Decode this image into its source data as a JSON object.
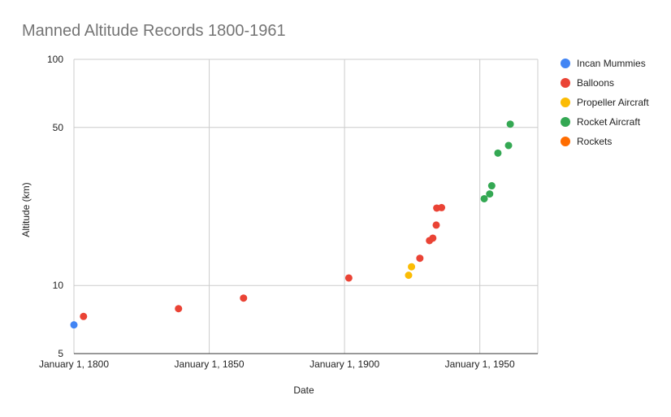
{
  "chart_data": {
    "type": "scatter",
    "title": "Manned Altitude Records 1800-1961",
    "xlabel": "Date",
    "ylabel": "Altitude (km)",
    "x_axis": {
      "type": "date",
      "range": [
        "1799-12-31",
        "1971-06-01"
      ],
      "tick_labels": [
        "January 1, 1800",
        "January 1, 1850",
        "January 1, 1900",
        "January 1, 1950"
      ],
      "tick_values": [
        "1800-01-01",
        "1850-01-01",
        "1900-01-01",
        "1950-01-01"
      ]
    },
    "y_axis": {
      "scale": "log",
      "range": [
        5,
        100
      ],
      "tick_labels": [
        "5",
        "10",
        "50",
        "100"
      ],
      "tick_values": [
        5,
        10,
        50,
        100
      ]
    },
    "grid": true,
    "legend_position": "right",
    "series": [
      {
        "name": "Incan Mummies",
        "color": "#4285f4",
        "points": [
          {
            "x": "1800-01-01",
            "y": 6.7
          }
        ]
      },
      {
        "name": "Balloons",
        "color": "#ea4335",
        "points": [
          {
            "x": "1803-07-18",
            "y": 7.3
          },
          {
            "x": "1838-08-26",
            "y": 7.9
          },
          {
            "x": "1862-09-05",
            "y": 8.8
          },
          {
            "x": "1901-07-31",
            "y": 10.8
          },
          {
            "x": "1927-11-04",
            "y": 13.2
          },
          {
            "x": "1931-05-27",
            "y": 15.8
          },
          {
            "x": "1932-08-18",
            "y": 16.2
          },
          {
            "x": "1933-11-20",
            "y": 18.5
          },
          {
            "x": "1934-01-30",
            "y": 22.0
          },
          {
            "x": "1935-11-11",
            "y": 22.1
          }
        ]
      },
      {
        "name": "Propeller Aircraft",
        "color": "#fbbc04",
        "points": [
          {
            "x": "1923-09-05",
            "y": 11.1
          },
          {
            "x": "1924-10-01",
            "y": 12.1
          }
        ]
      },
      {
        "name": "Rocket Aircraft",
        "color": "#34a853",
        "points": [
          {
            "x": "1951-08-15",
            "y": 24.2
          },
          {
            "x": "1953-08-21",
            "y": 25.4
          },
          {
            "x": "1954-05-28",
            "y": 27.6
          },
          {
            "x": "1956-09-07",
            "y": 38.5
          },
          {
            "x": "1960-08-12",
            "y": 41.6
          },
          {
            "x": "1961-03-30",
            "y": 51.7
          }
        ]
      },
      {
        "name": "Rockets",
        "color": "#ff6d01",
        "points": []
      }
    ]
  }
}
